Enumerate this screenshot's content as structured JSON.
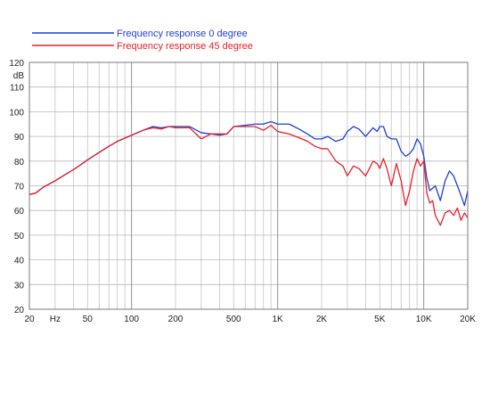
{
  "chart_data": {
    "type": "line",
    "xscale": "log",
    "xlim": [
      20,
      20000
    ],
    "ylim": [
      20,
      120
    ],
    "ylabel": "dB",
    "grid": true,
    "legend_position": "top-left",
    "x_tick_labels": [
      {
        "value": 20,
        "label": "20"
      },
      {
        "value": 30,
        "label": "Hz"
      },
      {
        "value": 50,
        "label": "50"
      },
      {
        "value": 100,
        "label": "100"
      },
      {
        "value": 200,
        "label": "200"
      },
      {
        "value": 500,
        "label": "500"
      },
      {
        "value": 1000,
        "label": "1K"
      },
      {
        "value": 2000,
        "label": "2K"
      },
      {
        "value": 5000,
        "label": "5K"
      },
      {
        "value": 10000,
        "label": "10K"
      },
      {
        "value": 20000,
        "label": "20K"
      }
    ],
    "y_tick_labels": [
      "120",
      "110",
      "100",
      "90",
      "80",
      "70",
      "60",
      "50",
      "40",
      "30",
      "20"
    ],
    "series": [
      {
        "name": "Frequency response 0 degree",
        "color": "#1f3fd6",
        "x": [
          20,
          22,
          25,
          30,
          35,
          40,
          50,
          60,
          70,
          80,
          100,
          120,
          140,
          160,
          180,
          200,
          250,
          300,
          350,
          400,
          450,
          500,
          600,
          700,
          800,
          900,
          1000,
          1200,
          1400,
          1600,
          1800,
          2000,
          2200,
          2500,
          2800,
          3000,
          3300,
          3600,
          4000,
          4500,
          4800,
          5000,
          5300,
          5600,
          6000,
          6500,
          7000,
          7500,
          8000,
          8500,
          9000,
          9500,
          10000,
          10500,
          11000,
          11500,
          12000,
          13000,
          14000,
          15000,
          16000,
          17000,
          18000,
          19000,
          20000
        ],
        "y": [
          66.5,
          67,
          69.5,
          72,
          74.5,
          76.5,
          80.5,
          83.5,
          86,
          88,
          90.5,
          92.5,
          94,
          93.5,
          94,
          94,
          94,
          91.5,
          91,
          90.5,
          91,
          94,
          94.5,
          95,
          95,
          96,
          95,
          95,
          93,
          91,
          89,
          89,
          90,
          88,
          89,
          92,
          94,
          93,
          90,
          93.5,
          92,
          94,
          94,
          90,
          89,
          89,
          84,
          82,
          83,
          85,
          89,
          87,
          82,
          73,
          68,
          69,
          70,
          64,
          72,
          76,
          74,
          70,
          66,
          62,
          68
        ]
      },
      {
        "name": "Frequency response 45 degree",
        "color": "#e8202a",
        "x": [
          20,
          22,
          25,
          30,
          35,
          40,
          50,
          60,
          70,
          80,
          100,
          120,
          140,
          160,
          180,
          200,
          250,
          300,
          350,
          400,
          450,
          500,
          600,
          700,
          800,
          900,
          1000,
          1200,
          1400,
          1600,
          1800,
          2000,
          2200,
          2500,
          2800,
          3000,
          3300,
          3600,
          4000,
          4500,
          4800,
          5000,
          5300,
          5600,
          6000,
          6500,
          7000,
          7500,
          8000,
          8500,
          9000,
          9500,
          10000,
          10500,
          11000,
          11500,
          12000,
          13000,
          14000,
          15000,
          16000,
          17000,
          18000,
          19000,
          20000
        ],
        "y": [
          66.5,
          67,
          69.5,
          72,
          74.5,
          76.5,
          80.5,
          83.5,
          86,
          88,
          90.5,
          92.5,
          93.5,
          93,
          94,
          93.5,
          93.5,
          89,
          91,
          91,
          91,
          94,
          94,
          94,
          92.5,
          94.5,
          92,
          91,
          89.5,
          88,
          86,
          85,
          85,
          80,
          78,
          74,
          78,
          77,
          74,
          80,
          79,
          77,
          81,
          77,
          70,
          79,
          72,
          62,
          68,
          76,
          81,
          78,
          80,
          67,
          63,
          64,
          58,
          54,
          59,
          60,
          58,
          61,
          56,
          59,
          57
        ]
      }
    ]
  }
}
